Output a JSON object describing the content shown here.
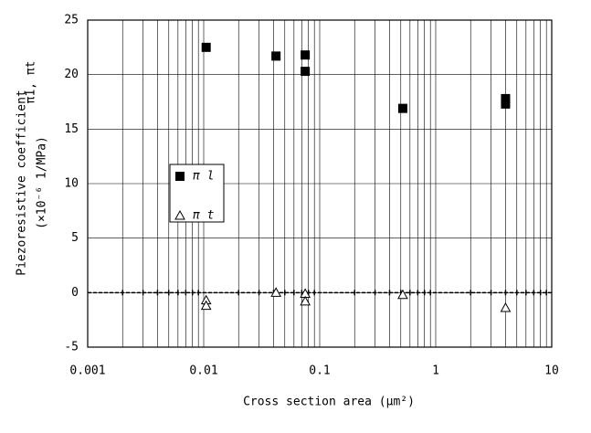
{
  "chart_data": {
    "type": "scatter",
    "xlabel": "Cross section area (μm²)",
    "ylabel": [
      "Piezoresistive coefficient",
      "(×10⁻⁶ 1/MPa)"
    ],
    "annotation": "π1, πt",
    "xscale": "log",
    "xlim": [
      0.001,
      10
    ],
    "xticks": [
      0.001,
      0.01,
      0.1,
      1,
      10
    ],
    "xminorticks": [
      0.002,
      0.003,
      0.004,
      0.005,
      0.006,
      0.007,
      0.008,
      0.009,
      0.02,
      0.03,
      0.04,
      0.05,
      0.06,
      0.07,
      0.08,
      0.09,
      0.2,
      0.3,
      0.4,
      0.5,
      0.6,
      0.7,
      0.8,
      0.9,
      2,
      3,
      4,
      5,
      6,
      7,
      8,
      9
    ],
    "ylim": [
      -5,
      25
    ],
    "yticks": [
      -5,
      0,
      5,
      10,
      15,
      20,
      25
    ],
    "grid": true,
    "series": [
      {
        "name": "π l",
        "marker": "square",
        "color": "#000000",
        "x": [
          0.0105,
          0.042,
          0.075,
          0.075,
          0.52,
          4,
          4
        ],
        "values": [
          22.5,
          21.7,
          21.8,
          20.3,
          16.9,
          17.8,
          17.3
        ]
      },
      {
        "name": "π t",
        "marker": "triangle",
        "color": "#000000",
        "x": [
          0.0105,
          0.0105,
          0.042,
          0.075,
          0.075,
          0.52,
          4
        ],
        "values": [
          -0.7,
          -1.2,
          0.0,
          -0.1,
          -0.8,
          -0.2,
          -1.4
        ]
      }
    ]
  }
}
